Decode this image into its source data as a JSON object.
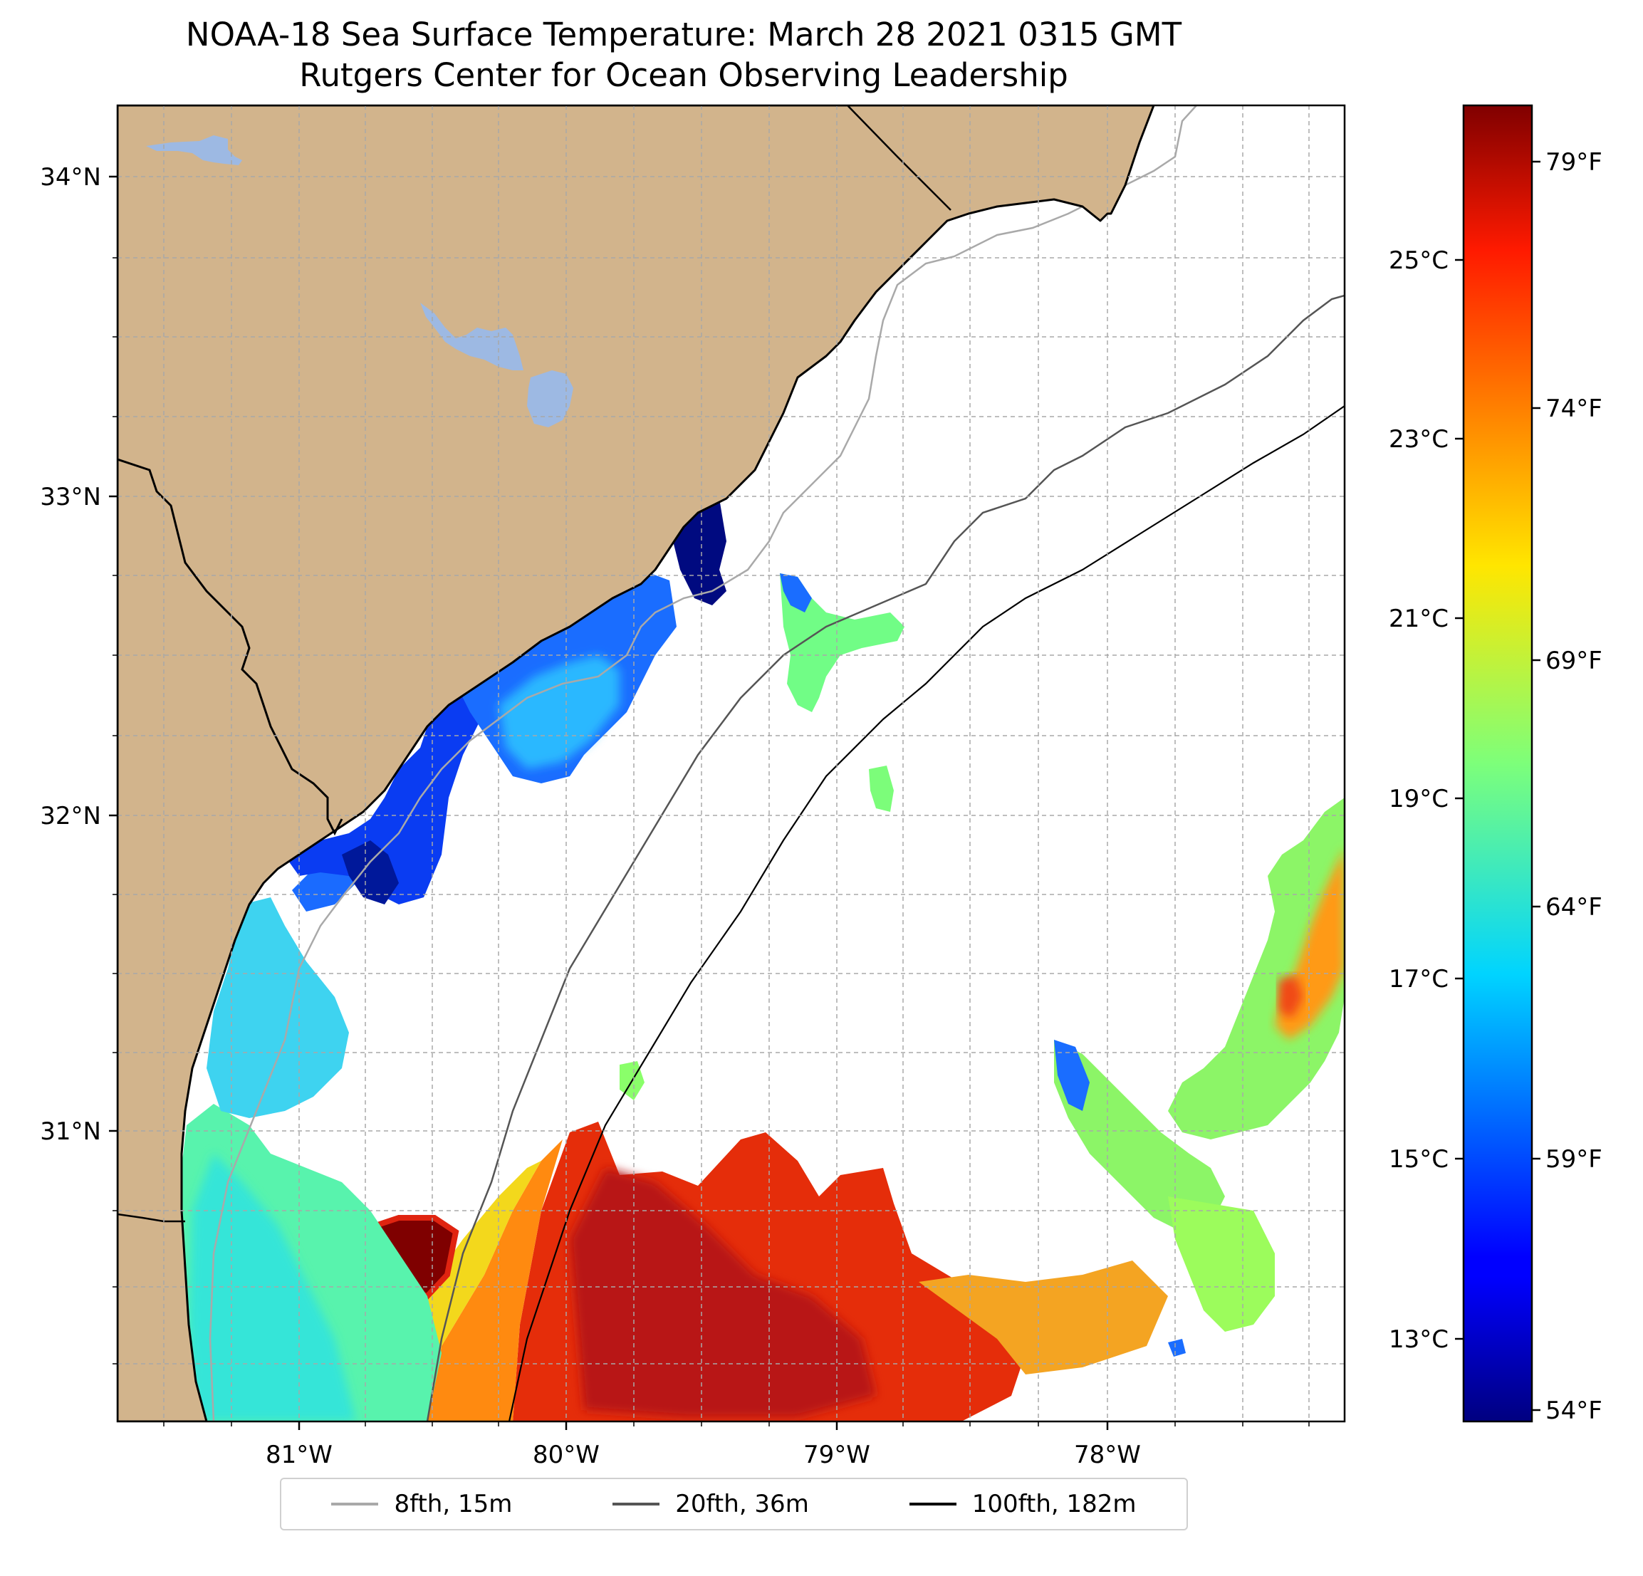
{
  "title": {
    "line1": "NOAA-18 Sea Surface Temperature: March 28 2021 0315 GMT",
    "line2": "Rutgers Center for Ocean Observing Leadership"
  },
  "chart_data": {
    "type": "heatmap",
    "map_extent": {
      "lon": [
        -81.68,
        -77.13
      ],
      "lat": [
        30.07,
        34.22
      ]
    },
    "x_ticks": [
      "81°W",
      "80°W",
      "79°W",
      "78°W"
    ],
    "y_ticks": [
      "34°N",
      "33°N",
      "32°N",
      "31°N"
    ],
    "grid": true,
    "colormap": "jet",
    "colorbar": {
      "celsius_range": [
        12.1,
        26.8
      ],
      "fahrenheit_ticks": [
        "79°F",
        "74°F",
        "69°F",
        "64°F",
        "59°F",
        "54°F"
      ],
      "celsius_ticks": [
        "25°C",
        "23°C",
        "21°C",
        "19°C",
        "17°C",
        "15°C",
        "13°C"
      ]
    },
    "land_color": "#d2b48c",
    "lake_color": "#9db9e3",
    "legend": {
      "placement": "bottom-center",
      "entries": [
        {
          "label": "8fth, 15m",
          "color": "#a9a9a9"
        },
        {
          "label": "20fth, 36m",
          "color": "#555555"
        },
        {
          "label": "100fth, 182m",
          "color": "#000000"
        }
      ]
    }
  }
}
